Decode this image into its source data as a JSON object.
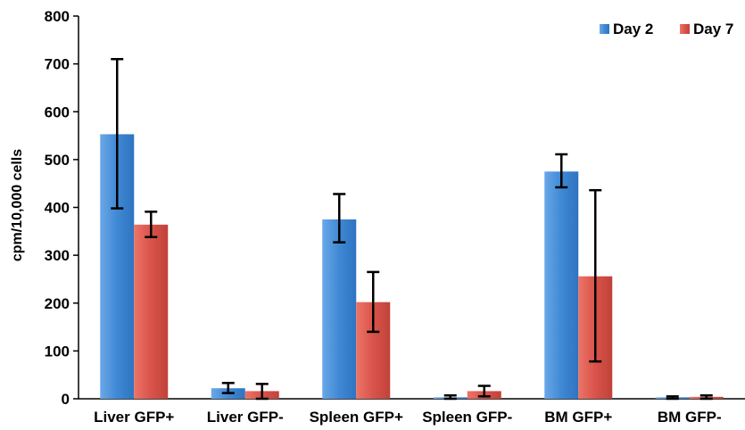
{
  "chart_data": {
    "type": "bar",
    "title": "",
    "xlabel": "",
    "ylabel": "cpm/10,000 cells",
    "ylim": [
      0,
      800
    ],
    "yticks": [
      0,
      100,
      200,
      300,
      400,
      500,
      600,
      700,
      800
    ],
    "grid": false,
    "legend_position": "top-right",
    "categories": [
      "Liver GFP+",
      "Liver GFP-",
      "Spleen GFP+",
      "Spleen GFP-",
      "BM GFP+",
      "BM GFP-"
    ],
    "series": [
      {
        "name": "Day 2",
        "color": "#4a8fd6",
        "values": [
          553,
          22,
          375,
          3,
          475,
          3
        ],
        "error_low": [
          398,
          12,
          327,
          0,
          442,
          0
        ],
        "error_high": [
          710,
          33,
          428,
          7,
          511,
          5
        ]
      },
      {
        "name": "Day 7",
        "color": "#d9534a",
        "values": [
          364,
          16,
          202,
          16,
          256,
          4
        ],
        "error_low": [
          338,
          0,
          140,
          5,
          78,
          0
        ],
        "error_high": [
          391,
          31,
          265,
          27,
          436,
          7
        ]
      }
    ]
  }
}
